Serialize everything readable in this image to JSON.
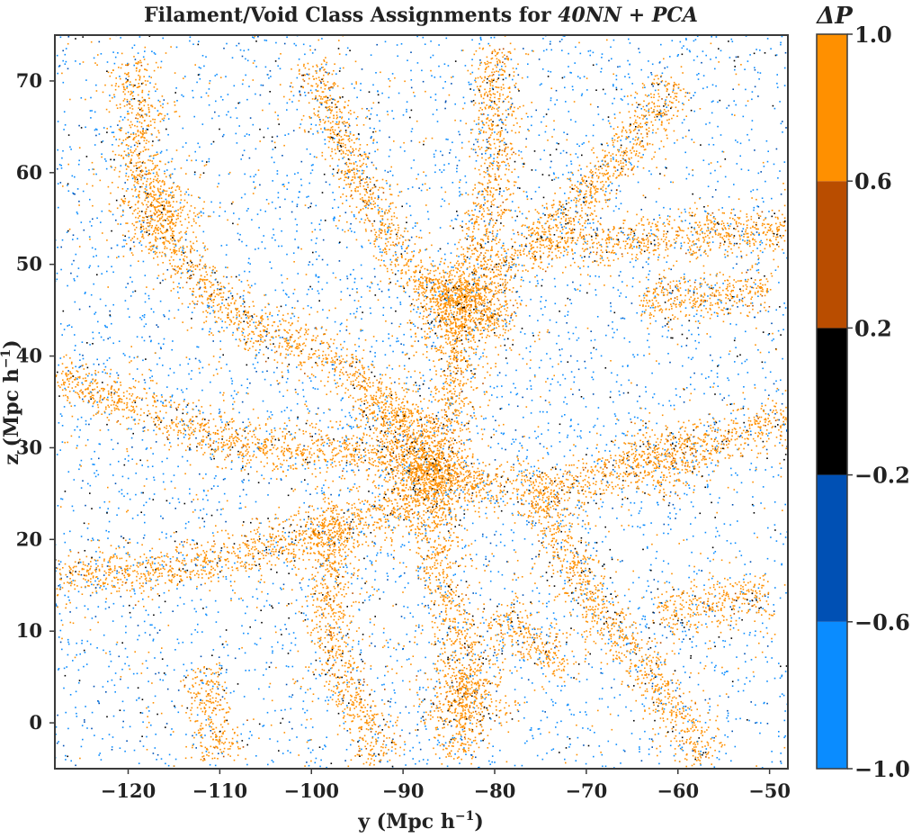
{
  "chart_data": {
    "type": "scatter",
    "title": "Filament/Void Class Assignments for ",
    "title_emphasis": "40NN + PCA",
    "xlabel": "y (Mpc h",
    "xlabel_sup": "−1",
    "xlabel_close": ")",
    "ylabel": "z (Mpc h",
    "ylabel_sup": "−1",
    "ylabel_close": ")",
    "xlim": [
      -128,
      -48
    ],
    "ylim": [
      -5,
      75
    ],
    "xticks": [
      -120,
      -110,
      -100,
      -90,
      -80,
      -70,
      -60,
      -50
    ],
    "xtick_labels": [
      "−120",
      "−110",
      "−100",
      "−90",
      "−80",
      "−70",
      "−60",
      "−50"
    ],
    "yticks": [
      0,
      10,
      20,
      30,
      40,
      50,
      60,
      70
    ],
    "ytick_labels": [
      "0",
      "10",
      "20",
      "30",
      "40",
      "50",
      "60",
      "70"
    ],
    "grid": false,
    "colorbar": {
      "label": "ΔP",
      "range": [
        -1.0,
        1.0
      ],
      "bounds": [
        -1.0,
        -0.6,
        -0.2,
        0.2,
        0.6,
        1.0
      ],
      "tick_labels": [
        "−1.0",
        "−0.6",
        "−0.2",
        "0.2",
        "0.6",
        "1.0"
      ],
      "colors": [
        "#0a8cff",
        "#0050b4",
        "#000000",
        "#b94d00",
        "#ff9000"
      ]
    },
    "filaments": [
      {
        "from": [
          -120,
          64
        ],
        "to": [
          -117,
          57
        ]
      },
      {
        "from": [
          -117,
          57
        ],
        "to": [
          -115,
          51
        ]
      },
      {
        "from": [
          -115,
          51
        ],
        "to": [
          -108,
          44
        ]
      },
      {
        "from": [
          -108,
          44
        ],
        "to": [
          -98,
          40
        ]
      },
      {
        "from": [
          -98,
          40
        ],
        "to": [
          -91,
          34
        ]
      },
      {
        "from": [
          -91,
          34
        ],
        "to": [
          -87,
          27
        ]
      },
      {
        "from": [
          -87,
          27
        ],
        "to": [
          -86,
          17
        ]
      },
      {
        "from": [
          -86,
          17
        ],
        "to": [
          -83,
          5
        ]
      },
      {
        "from": [
          -83,
          5
        ],
        "to": [
          -84,
          -4
        ]
      },
      {
        "from": [
          -87,
          27
        ],
        "to": [
          -75,
          25
        ]
      },
      {
        "from": [
          -75,
          25
        ],
        "to": [
          -62,
          29
        ]
      },
      {
        "from": [
          -62,
          29
        ],
        "to": [
          -48,
          33
        ]
      },
      {
        "from": [
          -87,
          27
        ],
        "to": [
          -84,
          36
        ]
      },
      {
        "from": [
          -84,
          36
        ],
        "to": [
          -84,
          45
        ]
      },
      {
        "from": [
          -84,
          45
        ],
        "to": [
          -76,
          52
        ]
      },
      {
        "from": [
          -76,
          52
        ],
        "to": [
          -62,
          53
        ]
      },
      {
        "from": [
          -62,
          53
        ],
        "to": [
          -48,
          54
        ]
      },
      {
        "from": [
          -84,
          45
        ],
        "to": [
          -90,
          50
        ]
      },
      {
        "from": [
          -90,
          50
        ],
        "to": [
          -96,
          62
        ]
      },
      {
        "from": [
          -96,
          62
        ],
        "to": [
          -100,
          72
        ]
      },
      {
        "from": [
          -84,
          45
        ],
        "to": [
          -80,
          58
        ]
      },
      {
        "from": [
          -80,
          58
        ],
        "to": [
          -80,
          74
        ]
      },
      {
        "from": [
          -88,
          24
        ],
        "to": [
          -98,
          21
        ]
      },
      {
        "from": [
          -98,
          21
        ],
        "to": [
          -113,
          17
        ]
      },
      {
        "from": [
          -113,
          17
        ],
        "to": [
          -128,
          16
        ]
      },
      {
        "from": [
          -98,
          21
        ],
        "to": [
          -98,
          8
        ]
      },
      {
        "from": [
          -98,
          8
        ],
        "to": [
          -94,
          0
        ]
      },
      {
        "from": [
          -94,
          0
        ],
        "to": [
          -92,
          -4
        ]
      },
      {
        "from": [
          -75,
          25
        ],
        "to": [
          -70,
          14
        ]
      },
      {
        "from": [
          -70,
          14
        ],
        "to": [
          -62,
          4
        ]
      },
      {
        "from": [
          -62,
          4
        ],
        "to": [
          -57,
          -4
        ]
      },
      {
        "from": [
          -120,
          72
        ],
        "to": [
          -118,
          64
        ]
      },
      {
        "from": [
          -128,
          38
        ],
        "to": [
          -118,
          34
        ]
      },
      {
        "from": [
          -118,
          34
        ],
        "to": [
          -108,
          30
        ]
      },
      {
        "from": [
          -108,
          30
        ],
        "to": [
          -98,
          30
        ]
      },
      {
        "from": [
          -98,
          30
        ],
        "to": [
          -88,
          28
        ]
      },
      {
        "from": [
          -88,
          48
        ],
        "to": [
          -78,
          44
        ]
      },
      {
        "from": [
          -64,
          46
        ],
        "to": [
          -50,
          47
        ]
      },
      {
        "from": [
          -60,
          70
        ],
        "to": [
          -66,
          62
        ]
      },
      {
        "from": [
          -66,
          62
        ],
        "to": [
          -76,
          52
        ]
      },
      {
        "from": [
          -112,
          6
        ],
        "to": [
          -110,
          -4
        ]
      },
      {
        "from": [
          -62,
          12
        ],
        "to": [
          -50,
          14
        ]
      },
      {
        "from": [
          -80,
          12
        ],
        "to": [
          -72,
          6
        ]
      }
    ],
    "clusters": [
      {
        "x": -87,
        "y": 27,
        "w": 0.6
      },
      {
        "x": -84,
        "y": 44,
        "w": 0.35
      },
      {
        "x": -117,
        "y": 56,
        "w": 0.3
      },
      {
        "x": -83,
        "y": 3,
        "w": 0.35
      },
      {
        "x": -62,
        "y": 29,
        "w": 0.25
      },
      {
        "x": -90,
        "y": 33,
        "w": 0.3
      },
      {
        "x": -98,
        "y": 21,
        "w": 0.2
      }
    ]
  }
}
